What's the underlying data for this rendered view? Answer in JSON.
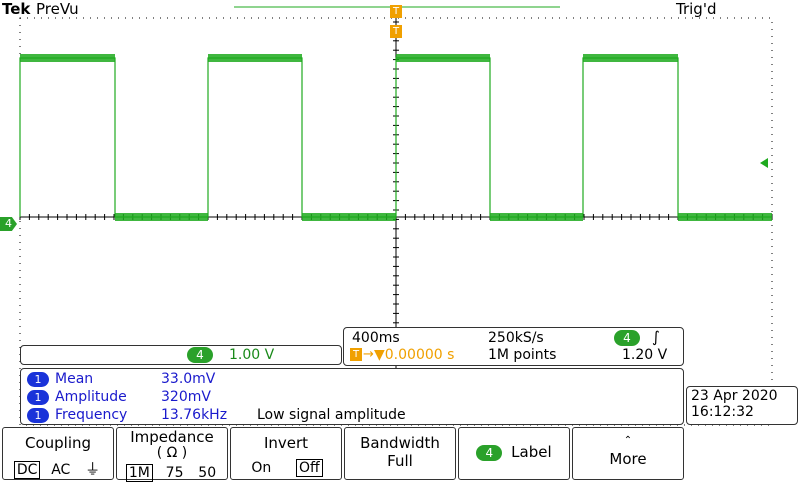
{
  "header": {
    "brand": "Tek",
    "mode": "PreVu",
    "trigger_status": "Trig'd"
  },
  "channel_marker": "4",
  "trigger_marker": "T",
  "waveform": {
    "high_level_fraction": 0.2,
    "low_level_fraction": 0.6,
    "edges": [
      20,
      115,
      208,
      302,
      396,
      490,
      583,
      678
    ]
  },
  "channel_scale": {
    "channel": "4",
    "value": "1.00 V"
  },
  "timebase": {
    "time_div": "400ms",
    "sample_rate": "250kS/s",
    "trigger_channel": "4",
    "trigger_slope_icon": "rising-edge-icon",
    "trigger_position": "▼0.00000 s",
    "record_length": "1M points",
    "trigger_level": "1.20 V"
  },
  "measurements": [
    {
      "badge": "1",
      "name": "Mean",
      "value": "33.0mV",
      "note": ""
    },
    {
      "badge": "1",
      "name": "Amplitude",
      "value": "320mV",
      "note": ""
    },
    {
      "badge": "1",
      "name": "Frequency",
      "value": "13.76kHz",
      "note": "Low signal amplitude"
    }
  ],
  "datetime": {
    "date": "23 Apr 2020",
    "time": "16:12:32"
  },
  "menu": {
    "coupling": {
      "title": "Coupling",
      "options": [
        "DC",
        "AC"
      ],
      "selected": "DC",
      "ground_icon": "ground-icon"
    },
    "impedance": {
      "title": "Impedance",
      "unit": "( Ω )",
      "options": [
        "1M",
        "75",
        "50"
      ],
      "selected": "1M"
    },
    "invert": {
      "title": "Invert",
      "options": [
        "On",
        "Off"
      ],
      "selected": "Off"
    },
    "bandwidth": {
      "title": "Bandwidth",
      "value": "Full"
    },
    "label": {
      "channel": "4",
      "title": "Label"
    },
    "more": {
      "title": "More"
    }
  },
  "colors": {
    "trace": "#1faa1f",
    "measurement_text": "#1a1acc",
    "trigger": "#f0a000",
    "grid": "#000000"
  }
}
